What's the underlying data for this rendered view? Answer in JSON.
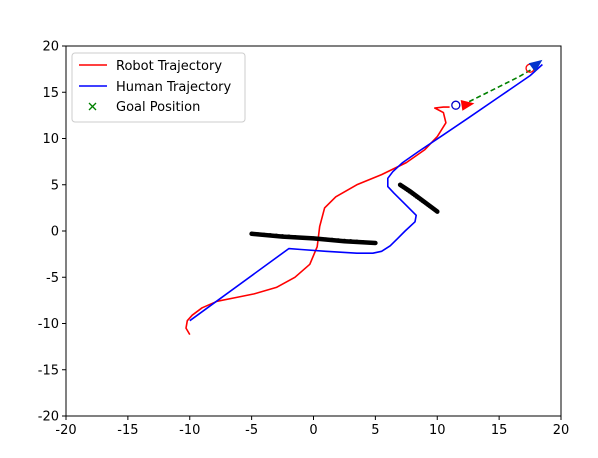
{
  "chart_data": {
    "type": "line",
    "title": "",
    "xlabel": "",
    "ylabel": "",
    "xlim": [
      -20,
      20
    ],
    "ylim": [
      -20,
      20
    ],
    "xticks": [
      -20,
      -15,
      -10,
      -5,
      0,
      5,
      10,
      15,
      20
    ],
    "yticks": [
      -20,
      -15,
      -10,
      -5,
      0,
      5,
      10,
      15,
      20
    ],
    "grid": false,
    "legend_position": "top-left",
    "series": [
      {
        "name": "Robot Trajectory",
        "color": "#ff0000",
        "kind": "line",
        "points": [
          [
            -10.0,
            -11.2
          ],
          [
            -10.3,
            -10.5
          ],
          [
            -10.2,
            -9.7
          ],
          [
            -9.8,
            -9.1
          ],
          [
            -9.0,
            -8.3
          ],
          [
            -7.8,
            -7.6
          ],
          [
            -6.3,
            -7.2
          ],
          [
            -4.8,
            -6.8
          ],
          [
            -3.0,
            -6.1
          ],
          [
            -1.5,
            -5.0
          ],
          [
            -0.3,
            -3.6
          ],
          [
            0.3,
            -1.7
          ],
          [
            0.5,
            0.5
          ],
          [
            0.9,
            2.5
          ],
          [
            1.8,
            3.7
          ],
          [
            3.5,
            5.0
          ],
          [
            5.5,
            6.1
          ],
          [
            7.5,
            7.4
          ],
          [
            9.0,
            8.8
          ],
          [
            10.0,
            10.2
          ],
          [
            10.7,
            11.7
          ],
          [
            10.5,
            12.8
          ],
          [
            9.8,
            13.3
          ],
          [
            10.5,
            13.4
          ],
          [
            11.0,
            13.4
          ]
        ]
      },
      {
        "name": "Human Trajectory",
        "color": "#0000ff",
        "kind": "line",
        "points": [
          [
            -10.0,
            -9.7
          ],
          [
            -2.0,
            -1.9
          ],
          [
            -1.0,
            -2.0
          ],
          [
            1.0,
            -2.2
          ],
          [
            3.5,
            -2.4
          ],
          [
            4.8,
            -2.4
          ],
          [
            5.5,
            -2.2
          ],
          [
            6.2,
            -1.6
          ],
          [
            6.8,
            -0.8
          ],
          [
            7.4,
            0.0
          ],
          [
            8.2,
            1.0
          ],
          [
            8.3,
            1.7
          ],
          [
            7.4,
            2.9
          ],
          [
            6.5,
            4.1
          ],
          [
            6.0,
            4.8
          ],
          [
            6.0,
            5.7
          ],
          [
            6.4,
            6.4
          ],
          [
            7.2,
            7.4
          ],
          [
            8.5,
            8.6
          ],
          [
            10.5,
            10.4
          ],
          [
            12.5,
            12.2
          ],
          [
            15.0,
            14.5
          ],
          [
            17.5,
            16.8
          ],
          [
            18.5,
            18.0
          ]
        ]
      },
      {
        "name": "",
        "color": "#008000",
        "kind": "dashed",
        "points": [
          [
            12.0,
            13.6
          ],
          [
            13.5,
            14.6
          ],
          [
            15.0,
            15.6
          ],
          [
            16.5,
            16.6
          ],
          [
            17.8,
            17.6
          ]
        ]
      },
      {
        "name": "",
        "color": "#000000",
        "kind": "obstacle",
        "points": [
          [
            -5.0,
            -0.3
          ],
          [
            -2.5,
            -0.6
          ],
          [
            0.0,
            -0.8
          ],
          [
            2.5,
            -1.1
          ],
          [
            5.0,
            -1.3
          ]
        ]
      },
      {
        "name": "",
        "color": "#000000",
        "kind": "obstacle",
        "points": [
          [
            7.0,
            5.0
          ],
          [
            7.8,
            4.3
          ],
          [
            8.5,
            3.6
          ],
          [
            9.3,
            2.8
          ],
          [
            10.0,
            2.1
          ]
        ]
      }
    ],
    "goal": {
      "name": "Goal Position",
      "marker": "x",
      "color": "#008000"
    },
    "markers": {
      "circles": [
        {
          "x": 11.5,
          "y": 13.6,
          "color": "#0000cc"
        },
        {
          "x": 17.5,
          "y": 17.6,
          "color": "#ff0000"
        }
      ],
      "arrows": [
        {
          "x0": 11.6,
          "y0": 13.5,
          "x1": 13.0,
          "y1": 13.8,
          "color": "#ff0000"
        },
        {
          "x0": 17.3,
          "y0": 17.3,
          "x1": 18.5,
          "y1": 18.5,
          "color": "#0033cc"
        }
      ]
    }
  }
}
